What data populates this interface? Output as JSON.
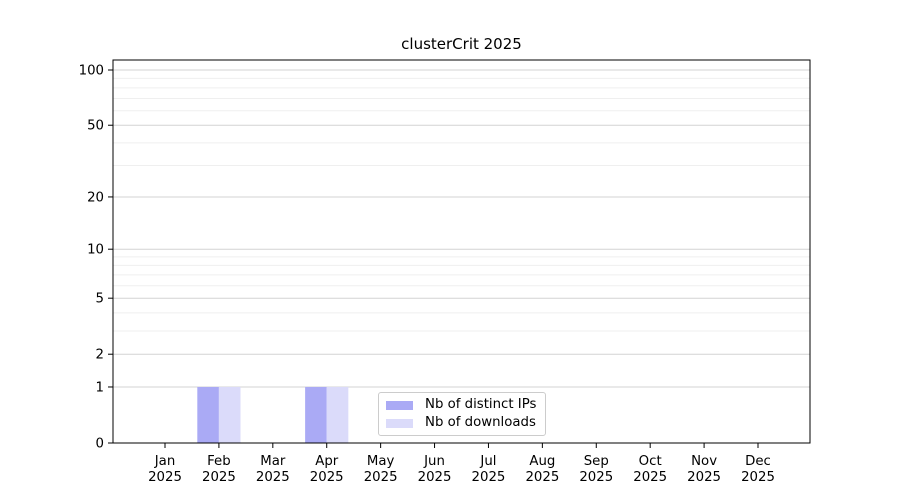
{
  "chart_data": {
    "type": "bar",
    "title": "clusterCrit 2025",
    "categories": [
      "Jan",
      "Feb",
      "Mar",
      "Apr",
      "May",
      "Jun",
      "Jul",
      "Aug",
      "Sep",
      "Oct",
      "Nov",
      "Dec"
    ],
    "x_year_label": "2025",
    "series": [
      {
        "name": "Nb of distinct IPs",
        "color": "#aaaaf5",
        "values": [
          0,
          1,
          0,
          1,
          0,
          0,
          0,
          0,
          0,
          0,
          0,
          0
        ]
      },
      {
        "name": "Nb of downloads",
        "color": "#dbdbfa",
        "values": [
          0,
          1,
          0,
          1,
          0,
          0,
          0,
          0,
          0,
          0,
          0,
          0
        ]
      }
    ],
    "y_scale": "log1p",
    "ylim": [
      0,
      100
    ],
    "y_major_ticks": [
      0,
      1,
      2,
      5,
      10,
      20,
      50,
      100
    ],
    "y_minor_ticks": [
      3,
      4,
      6,
      7,
      8,
      9,
      30,
      40,
      60,
      70,
      80,
      90
    ],
    "grid": true,
    "legend_position": "bottom-center",
    "colors": {
      "major_grid": "#d3d3d3",
      "minor_grid": "#efefef",
      "spine": "#000000",
      "text": "#000000"
    }
  }
}
